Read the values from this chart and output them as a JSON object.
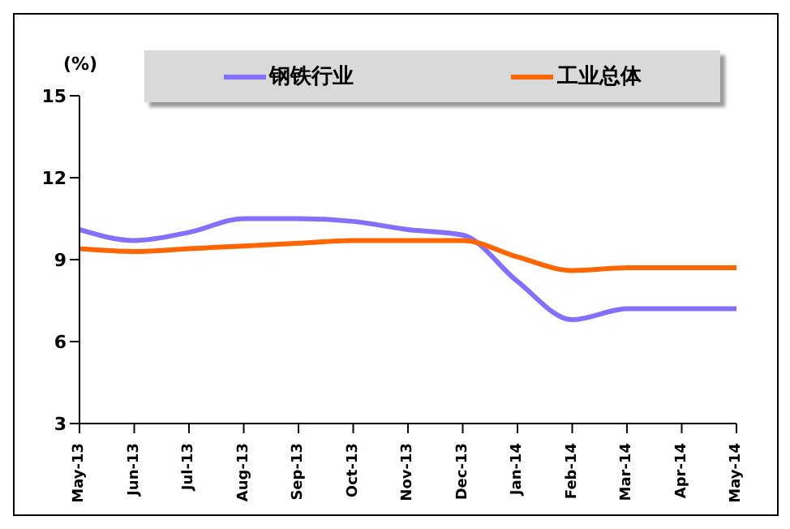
{
  "chart_data": {
    "type": "line",
    "ylabel": "(%)",
    "categories": [
      "May-13",
      "Jun-13",
      "Jul-13",
      "Aug-13",
      "Sep-13",
      "Oct-13",
      "Nov-13",
      "Dec-13",
      "Jan-14",
      "Feb-14",
      "Mar-14",
      "Apr-14",
      "May-14"
    ],
    "series": [
      {
        "name": "钢铁行业",
        "color": "#8470ff",
        "values": [
          10.1,
          9.7,
          10.0,
          10.5,
          10.5,
          10.4,
          10.1,
          9.9,
          8.2,
          6.8,
          7.2,
          7.2,
          7.2
        ]
      },
      {
        "name": "工业总体",
        "color": "#ff6600",
        "values": [
          9.4,
          9.3,
          9.4,
          9.5,
          9.6,
          9.7,
          9.7,
          9.7,
          9.1,
          8.6,
          8.7,
          8.7,
          8.7
        ]
      }
    ],
    "ylim": [
      3,
      15
    ],
    "yticks": [
      3,
      6,
      9,
      12,
      15
    ],
    "grid": false,
    "legend": "top",
    "marker": "none",
    "line_style": "solid"
  }
}
